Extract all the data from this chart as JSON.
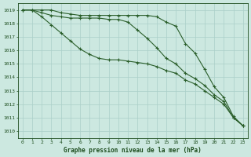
{
  "title": "Graphe pression niveau de la mer (hPa)",
  "x": [
    0,
    1,
    2,
    3,
    4,
    5,
    6,
    7,
    8,
    9,
    10,
    11,
    12,
    13,
    14,
    15,
    16,
    17,
    18,
    19,
    20,
    21,
    22,
    23
  ],
  "line_top": [
    1019.0,
    1019.0,
    1019.0,
    1019.0,
    1018.8,
    1018.7,
    1018.6,
    1018.6,
    1018.6,
    1018.6,
    1018.6,
    1018.6,
    1018.6,
    1018.6,
    1018.5,
    1018.1,
    1017.8,
    1016.5,
    1015.8,
    1014.6,
    1013.3,
    1012.5,
    1011.1,
    1010.4
  ],
  "line_mid": [
    1019.0,
    1019.0,
    1018.8,
    1018.6,
    1018.5,
    1018.4,
    1018.4,
    1018.4,
    1018.4,
    1018.3,
    1018.3,
    1018.1,
    1017.5,
    1016.9,
    1016.2,
    1015.4,
    1015.0,
    1014.3,
    1013.9,
    1013.4,
    1012.7,
    1012.2,
    1011.0,
    1010.4
  ],
  "line_bot": [
    1019.0,
    1019.0,
    1018.5,
    1017.9,
    1017.3,
    1016.7,
    1016.1,
    1015.7,
    1015.4,
    1015.3,
    1015.3,
    1015.2,
    1015.1,
    1015.0,
    1014.8,
    1014.5,
    1014.3,
    1013.8,
    1013.5,
    1013.0,
    1012.5,
    1012.0,
    1011.0,
    1010.4
  ],
  "bg_color": "#cce8e0",
  "grid_major_color": "#aacfc8",
  "grid_minor_color": "#bbddd8",
  "line_color": "#2a5e2a",
  "text_color": "#1a4a1a",
  "ylim": [
    1009.5,
    1019.5
  ],
  "yticks": [
    1010,
    1011,
    1012,
    1013,
    1014,
    1015,
    1016,
    1017,
    1018,
    1019
  ],
  "xticks": [
    0,
    1,
    2,
    3,
    4,
    5,
    6,
    7,
    8,
    9,
    10,
    11,
    12,
    13,
    14,
    15,
    16,
    17,
    18,
    19,
    20,
    21,
    22,
    23
  ],
  "marker": "+",
  "markersize": 3.5,
  "linewidth": 0.8
}
